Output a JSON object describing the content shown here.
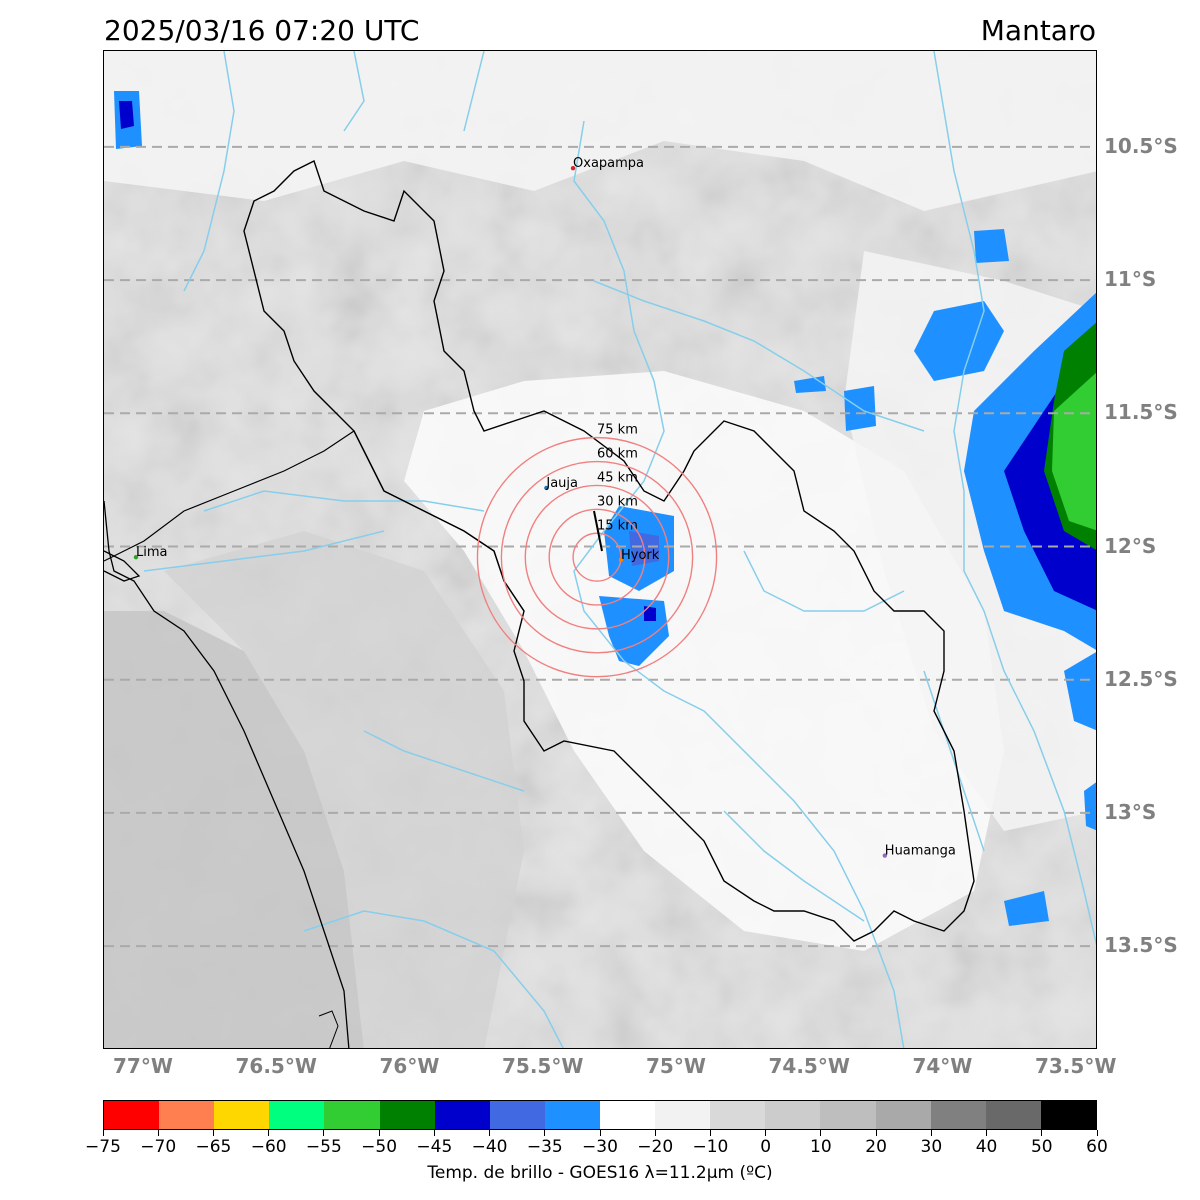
{
  "header": {
    "datetime": "2025/03/16 07:20 UTC",
    "region": "Mantaro"
  },
  "map": {
    "lon_range": [
      -77.15,
      -73.42
    ],
    "lat_range": [
      -13.89,
      -10.14
    ],
    "lat_labels": [
      {
        "lat": -10.5,
        "label": "10.5°S"
      },
      {
        "lat": -11.0,
        "label": "11°S"
      },
      {
        "lat": -11.5,
        "label": "11.5°S"
      },
      {
        "lat": -12.0,
        "label": "12°S"
      },
      {
        "lat": -12.5,
        "label": "12.5°S"
      },
      {
        "lat": -13.0,
        "label": "13°S"
      },
      {
        "lat": -13.5,
        "label": "13.5°S"
      }
    ],
    "lon_labels": [
      {
        "lon": -77.0,
        "label": "77°W"
      },
      {
        "lon": -76.5,
        "label": "76.5°W"
      },
      {
        "lon": -76.0,
        "label": "76°W"
      },
      {
        "lon": -75.5,
        "label": "75.5°W"
      },
      {
        "lon": -75.0,
        "label": "75°W"
      },
      {
        "lon": -74.5,
        "label": "74.5°W"
      },
      {
        "lon": -74.0,
        "label": "74°W"
      },
      {
        "lon": -73.5,
        "label": "73.5°W"
      }
    ],
    "cities": [
      {
        "name": "Oxapampa",
        "lon": -75.39,
        "lat": -10.58,
        "color": "#d62728"
      },
      {
        "name": "Jauja",
        "lon": -75.49,
        "lat": -11.78,
        "color": "#1f77b4"
      },
      {
        "name": "Hyork",
        "lon": -75.21,
        "lat": -12.05,
        "color": "#ff7f0e"
      },
      {
        "name": "Lima",
        "lon": -77.03,
        "lat": -12.04,
        "color": "#2ca02c"
      },
      {
        "name": "Huamanga",
        "lon": -74.22,
        "lat": -13.16,
        "color": "#9467bd"
      }
    ],
    "radar": {
      "center_lon": -75.3,
      "center_lat": -12.04,
      "ring_color": "#f08080",
      "rings": [
        {
          "radius_km": 15,
          "label": "15 km"
        },
        {
          "radius_km": 30,
          "label": "30 km"
        },
        {
          "radius_km": 45,
          "label": "45 km"
        },
        {
          "radius_km": 60,
          "label": "60 km"
        },
        {
          "radius_km": 75,
          "label": "75 km"
        }
      ]
    }
  },
  "colorbar": {
    "title": "Temp. de brillo - GOES16 λ=11.2μm (ºC)",
    "ticks": [
      "−75",
      "−70",
      "−65",
      "−60",
      "−55",
      "−50",
      "−45",
      "−40",
      "−35",
      "−30",
      "−20",
      "−10",
      "0",
      "10",
      "20",
      "30",
      "40",
      "50",
      "60"
    ],
    "colors": [
      "#ff0000",
      "#ff7f50",
      "#ffd700",
      "#00ff7f",
      "#32cd32",
      "#008000",
      "#0000cd",
      "#4169e1",
      "#1e90ff",
      "#ffffff",
      "#f2f2f2",
      "#d9d9d9",
      "#cccccc",
      "#bebebe",
      "#a9a9a9",
      "#808080",
      "#696969",
      "#000000"
    ]
  }
}
